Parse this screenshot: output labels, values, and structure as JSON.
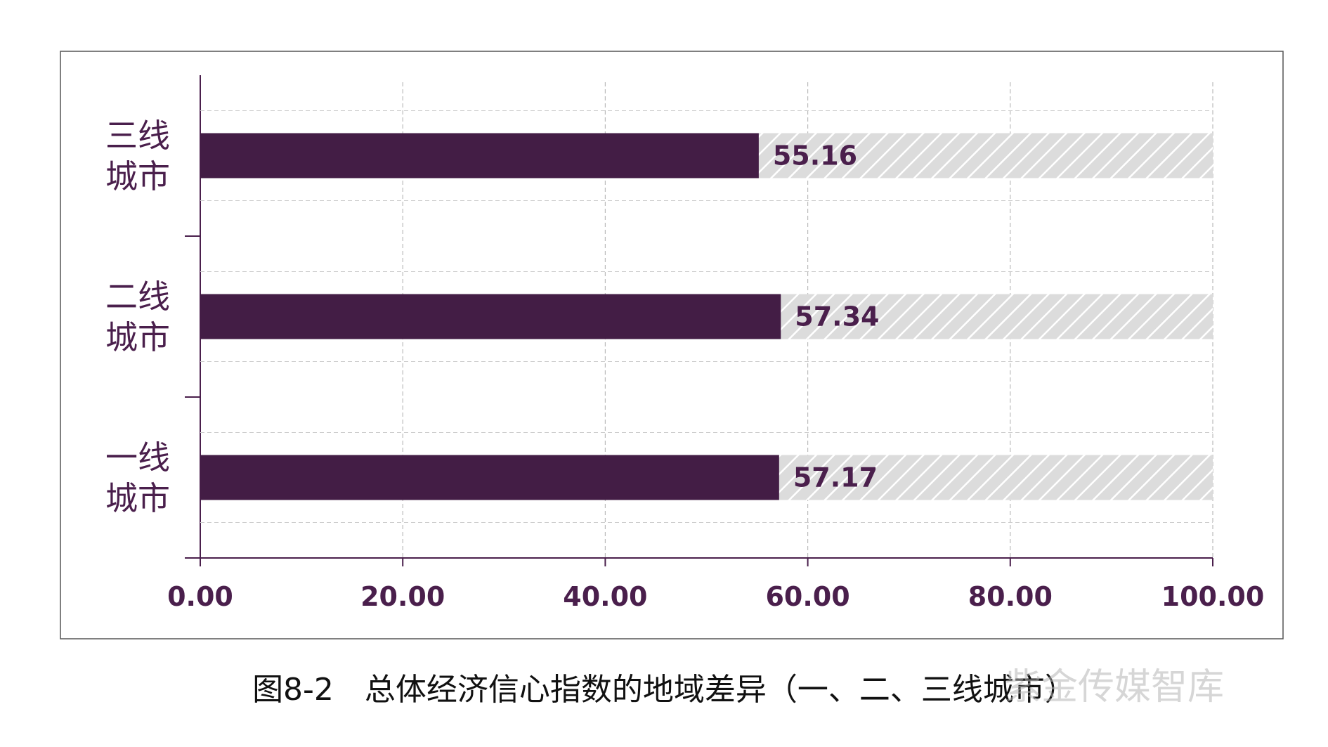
{
  "chart_data": {
    "type": "barh",
    "categories": [
      "一线城市",
      "二线城市",
      "三线城市"
    ],
    "values": [
      57.17,
      57.34,
      55.16
    ],
    "color": "#431d45",
    "xlim": [
      0,
      100
    ],
    "xticks": [
      {
        "value": 0,
        "label": "0.00"
      },
      {
        "value": 20,
        "label": "20.00"
      },
      {
        "value": 40,
        "label": "40.00"
      },
      {
        "value": 60,
        "label": "60.00"
      },
      {
        "value": 80,
        "label": "80.00"
      },
      {
        "value": 100,
        "label": "100.00"
      }
    ],
    "grid": true,
    "caption": "图8-2　总体经济信心指数的地域差异（一、二、三线城市）",
    "watermark": "紫金传媒智库"
  }
}
